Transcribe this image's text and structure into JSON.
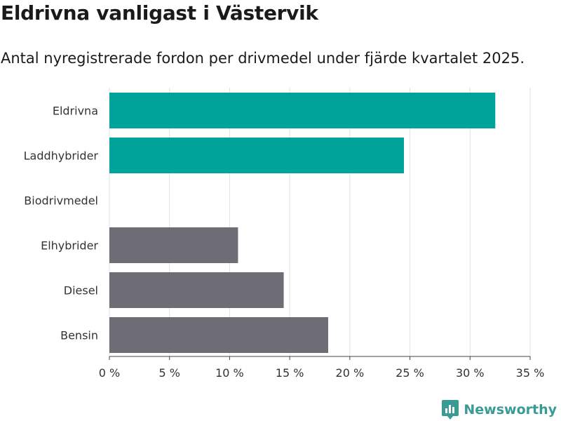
{
  "chart_data": {
    "type": "bar",
    "orientation": "horizontal",
    "title": "Eldrivna vanligast i Västervik",
    "subtitle": "Antal nyregistrerade fordon per drivmedel under fjärde kvartalet 2025.",
    "categories": [
      "Eldrivna",
      "Laddhybrider",
      "Biodrivmedel",
      "Elhybrider",
      "Diesel",
      "Bensin"
    ],
    "values": [
      32.1,
      24.5,
      0,
      10.7,
      14.5,
      18.2
    ],
    "bar_colors": [
      "#00a39a",
      "#00a39a",
      "#6e6d75",
      "#6e6d75",
      "#6e6d75",
      "#6e6d75"
    ],
    "xlim": [
      0,
      35
    ],
    "xticks": [
      0,
      5,
      10,
      15,
      20,
      25,
      30,
      35
    ],
    "tick_suffix": " %",
    "xlabel": "",
    "ylabel": "",
    "grid": true
  },
  "branding": {
    "name": "Newsworthy",
    "color": "#3a9a94",
    "icon": "bar-chart-badge-icon"
  }
}
